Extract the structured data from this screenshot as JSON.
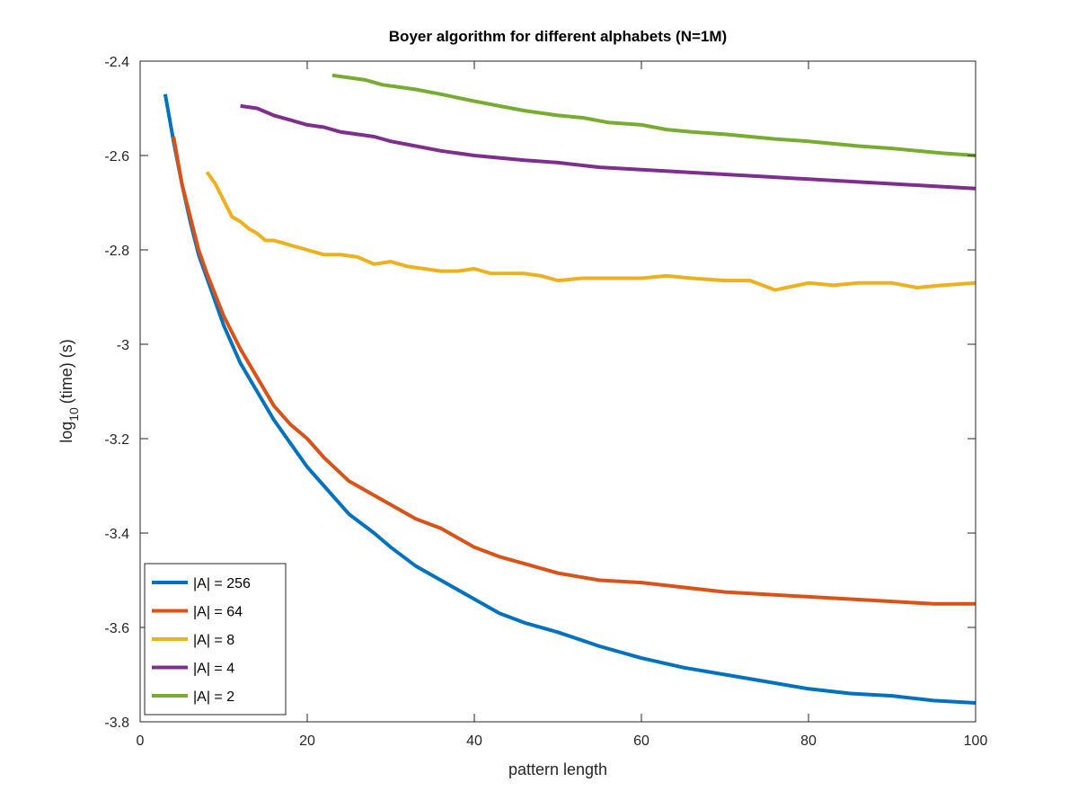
{
  "chart_data": {
    "type": "line",
    "title": "Boyer algorithm for different alphabets (N=1M)",
    "xlabel": "pattern length",
    "ylabel": {
      "base": "log",
      "sub": "10",
      "rest": "(time) (s)"
    },
    "xlim": [
      0,
      100
    ],
    "ylim": [
      -3.8,
      -2.4
    ],
    "xticks": [
      0,
      20,
      40,
      60,
      80,
      100
    ],
    "yticks": [
      -3.8,
      -3.6,
      -3.4,
      -3.2,
      -3.0,
      -2.8,
      -2.6,
      -2.4
    ],
    "ytick_labels": [
      "-3.8",
      "-3.6",
      "-3.4",
      "-3.2",
      "-3",
      "-2.8",
      "-2.6",
      "-2.4"
    ],
    "xtick_labels": [
      "0",
      "20",
      "40",
      "60",
      "80",
      "100"
    ],
    "grid": false,
    "legend_position": "bottom-left",
    "series": [
      {
        "name": "|A| = 256",
        "color": "#0072BD",
        "x": [
          3,
          4,
          5,
          6,
          7,
          8,
          10,
          12,
          14,
          16,
          18,
          20,
          22,
          25,
          28,
          30,
          33,
          36,
          40,
          43,
          46,
          50,
          55,
          60,
          65,
          70,
          75,
          80,
          85,
          90,
          95,
          100
        ],
        "y": [
          -2.47,
          -2.57,
          -2.66,
          -2.74,
          -2.81,
          -2.86,
          -2.96,
          -3.04,
          -3.1,
          -3.16,
          -3.21,
          -3.26,
          -3.3,
          -3.36,
          -3.4,
          -3.43,
          -3.47,
          -3.5,
          -3.54,
          -3.57,
          -3.59,
          -3.61,
          -3.64,
          -3.665,
          -3.685,
          -3.7,
          -3.715,
          -3.73,
          -3.74,
          -3.745,
          -3.755,
          -3.76
        ]
      },
      {
        "name": "|A| = 64",
        "color": "#D95319",
        "x": [
          4,
          5,
          6,
          7,
          8,
          10,
          12,
          14,
          16,
          18,
          20,
          22,
          25,
          28,
          30,
          33,
          36,
          40,
          43,
          46,
          50,
          55,
          60,
          65,
          70,
          75,
          80,
          85,
          90,
          95,
          100
        ],
        "y": [
          -2.56,
          -2.66,
          -2.73,
          -2.8,
          -2.85,
          -2.94,
          -3.01,
          -3.07,
          -3.13,
          -3.17,
          -3.2,
          -3.24,
          -3.29,
          -3.32,
          -3.34,
          -3.37,
          -3.39,
          -3.43,
          -3.45,
          -3.465,
          -3.485,
          -3.5,
          -3.505,
          -3.515,
          -3.525,
          -3.53,
          -3.535,
          -3.54,
          -3.545,
          -3.55,
          -3.55
        ]
      },
      {
        "name": "|A| = 8",
        "color": "#EDB120",
        "x": [
          8,
          9,
          10,
          11,
          12,
          13,
          14,
          15,
          16,
          17,
          18,
          20,
          22,
          24,
          26,
          28,
          30,
          32,
          34,
          36,
          38,
          40,
          42,
          44,
          46,
          48,
          50,
          53,
          56,
          60,
          63,
          66,
          70,
          73,
          76,
          80,
          83,
          86,
          90,
          93,
          96,
          100
        ],
        "y": [
          -2.635,
          -2.66,
          -2.695,
          -2.73,
          -2.74,
          -2.755,
          -2.765,
          -2.78,
          -2.78,
          -2.785,
          -2.79,
          -2.8,
          -2.81,
          -2.81,
          -2.815,
          -2.83,
          -2.825,
          -2.835,
          -2.84,
          -2.845,
          -2.845,
          -2.84,
          -2.85,
          -2.85,
          -2.85,
          -2.855,
          -2.865,
          -2.86,
          -2.86,
          -2.86,
          -2.855,
          -2.86,
          -2.865,
          -2.865,
          -2.885,
          -2.87,
          -2.875,
          -2.87,
          -2.87,
          -2.88,
          -2.875,
          -2.87
        ]
      },
      {
        "name": "|A| = 4",
        "color": "#7E2F8E",
        "x": [
          12,
          14,
          16,
          18,
          20,
          22,
          24,
          26,
          28,
          30,
          33,
          36,
          40,
          43,
          46,
          50,
          55,
          60,
          65,
          70,
          75,
          80,
          85,
          90,
          95,
          100
        ],
        "y": [
          -2.495,
          -2.5,
          -2.515,
          -2.525,
          -2.535,
          -2.54,
          -2.55,
          -2.555,
          -2.56,
          -2.57,
          -2.58,
          -2.59,
          -2.6,
          -2.605,
          -2.61,
          -2.615,
          -2.625,
          -2.63,
          -2.635,
          -2.64,
          -2.645,
          -2.65,
          -2.655,
          -2.66,
          -2.665,
          -2.67
        ]
      },
      {
        "name": "|A| = 2",
        "color": "#77AC30",
        "x": [
          23,
          25,
          27,
          29,
          31,
          33,
          36,
          40,
          43,
          46,
          50,
          53,
          56,
          60,
          63,
          66,
          70,
          73,
          76,
          80,
          83,
          86,
          90,
          93,
          96,
          100
        ],
        "y": [
          -2.43,
          -2.435,
          -2.44,
          -2.45,
          -2.455,
          -2.46,
          -2.47,
          -2.485,
          -2.495,
          -2.505,
          -2.515,
          -2.52,
          -2.53,
          -2.535,
          -2.545,
          -2.55,
          -2.555,
          -2.56,
          -2.565,
          -2.57,
          -2.575,
          -2.58,
          -2.585,
          -2.59,
          -2.595,
          -2.6
        ]
      }
    ]
  }
}
